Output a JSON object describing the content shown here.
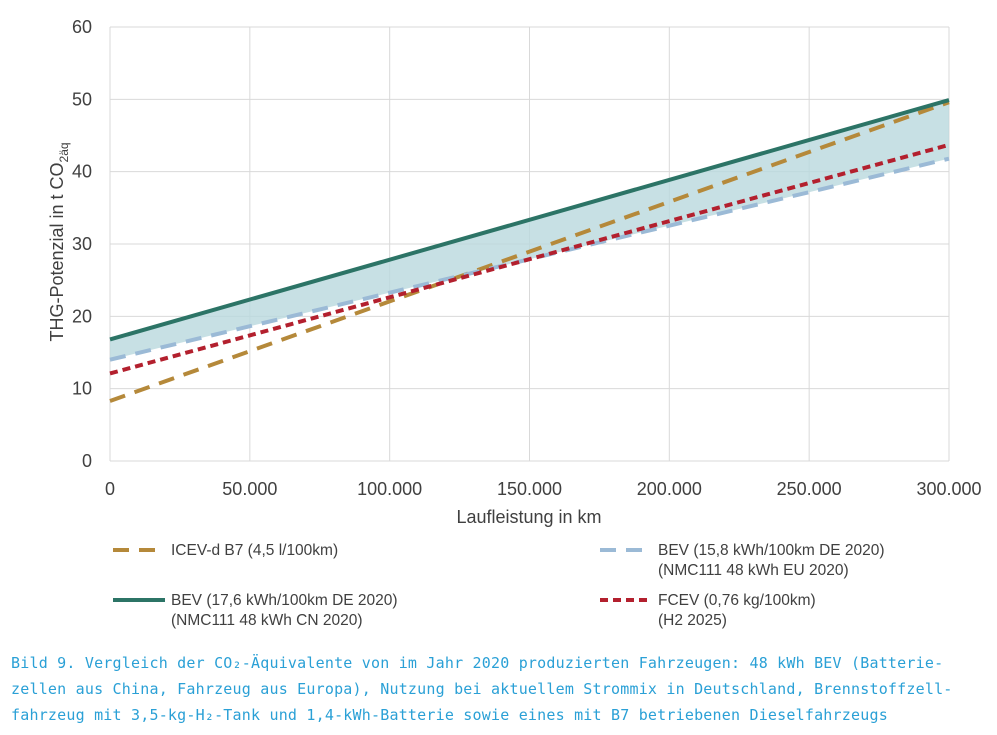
{
  "chart_data": {
    "type": "line",
    "xlabel": "Laufleistung in km",
    "ylabel": "THG-Potenzial in t CO",
    "ylabel_sub": "2äq",
    "xlim": [
      0,
      300000
    ],
    "ylim": [
      0,
      60
    ],
    "x_ticks": [
      0,
      50000,
      100000,
      150000,
      200000,
      250000,
      300000
    ],
    "x_tick_labels": [
      "0",
      "50.000",
      "100.000",
      "150.000",
      "200.000",
      "250.000",
      "300.000"
    ],
    "y_ticks": [
      0,
      10,
      20,
      30,
      40,
      50,
      60
    ],
    "y_tick_labels": [
      "0",
      "10",
      "20",
      "30",
      "40",
      "50",
      "60"
    ],
    "grid": true,
    "legend_position": "bottom",
    "shaded_band": {
      "between": [
        "BEV CN",
        "BEV EU"
      ],
      "color": "#b9d8dd"
    },
    "series": [
      {
        "key": "ICEV",
        "name_line1": "ICEV-d B7 (4,5 l/100km)",
        "name_line2": "",
        "style": "dashed",
        "color": "#b5893a",
        "x": [
          0,
          300000
        ],
        "y": [
          8.3,
          49.6
        ]
      },
      {
        "key": "BEV EU",
        "name_line1": "BEV (15,8 kWh/100km DE 2020)",
        "name_line2": "(NMC111 48 kWh EU 2020)",
        "style": "dashed",
        "color": "#9bbad6",
        "x": [
          0,
          300000
        ],
        "y": [
          14.0,
          41.8
        ]
      },
      {
        "key": "BEV CN",
        "name_line1": "BEV (17,6 kWh/100km DE 2020)",
        "name_line2": "(NMC111 48 kWh CN 2020)",
        "style": "solid",
        "color": "#2c7466",
        "x": [
          0,
          300000
        ],
        "y": [
          16.8,
          49.9
        ]
      },
      {
        "key": "FCEV",
        "name_line1": "FCEV (0,76 kg/100km)",
        "name_line2": "(H2 2025)",
        "style": "dotted",
        "color": "#b3202e",
        "x": [
          0,
          300000
        ],
        "y": [
          12.1,
          43.7
        ]
      }
    ]
  },
  "caption": {
    "line1": "Bild 9. Vergleich der CO₂-Äquivalente von im Jahr 2020 produzierten Fahrzeugen: 48 kWh BEV (Batterie-",
    "line2": "zellen aus China, Fahrzeug aus Europa), Nutzung bei aktuellem Strommix in Deutschland, Brennstoffzell-",
    "line3": "fahrzeug mit 3,5-kg-H₂-Tank und 1,4-kWh-Batterie sowie eines mit B7 betriebenen Dieselfahrzeugs"
  }
}
